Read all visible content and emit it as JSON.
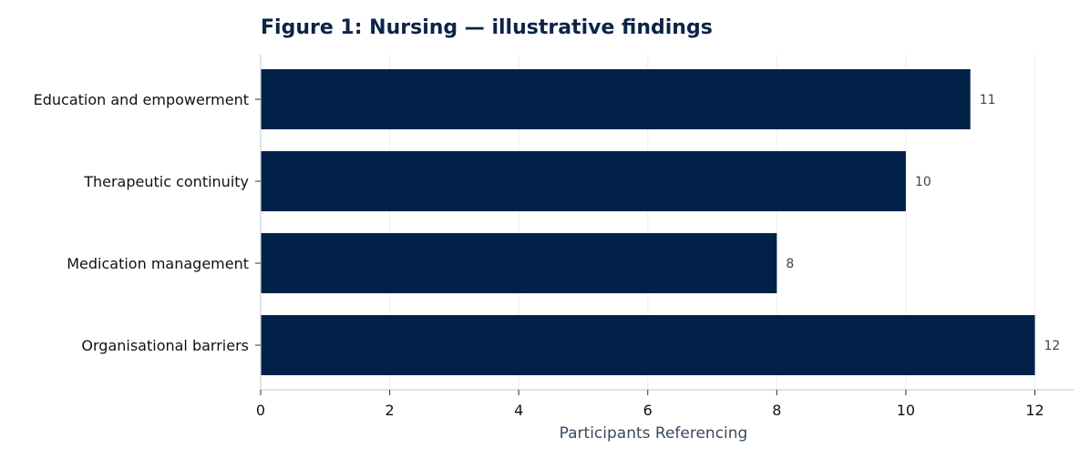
{
  "chart_data": {
    "type": "bar",
    "orientation": "horizontal",
    "title": "Figure 1: Nursing — illustrative findings",
    "xlabel": "Participants Referencing",
    "ylabel": "",
    "categories": [
      "Education and empowerment",
      "Therapeutic continuity",
      "Medication management",
      "Organisational barriers"
    ],
    "values": [
      11,
      10,
      8,
      12
    ],
    "value_labels": [
      "11",
      "10",
      "8",
      "12"
    ],
    "xlim": [
      0,
      12.6
    ],
    "xticks": [
      0,
      2,
      4,
      6,
      8,
      10,
      12
    ],
    "xtick_labels": [
      "0",
      "2",
      "4",
      "6",
      "8",
      "10",
      "12"
    ],
    "grid": true,
    "legend": "none",
    "bar_color": "#022149"
  }
}
